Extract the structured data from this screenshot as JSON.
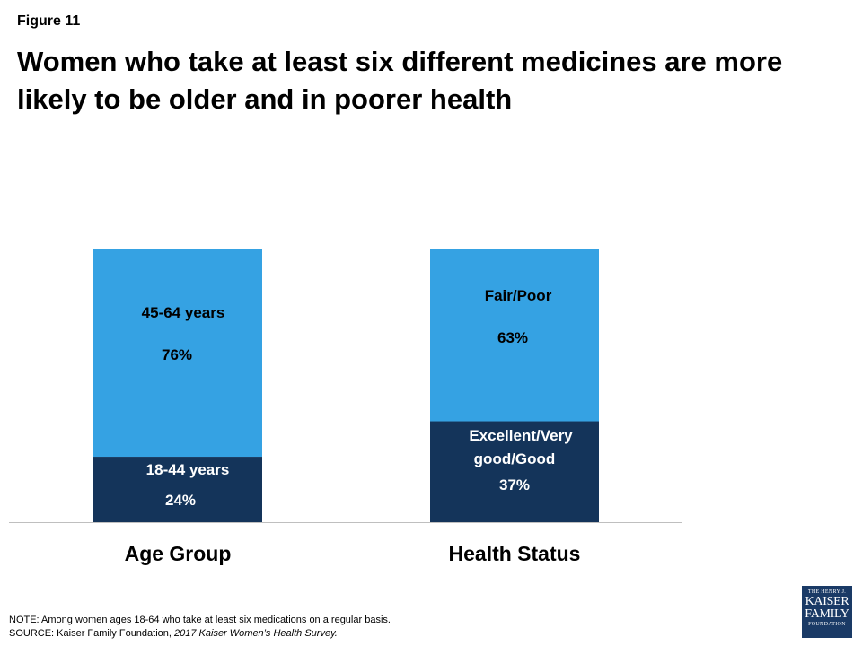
{
  "figure_label": "Figure 11",
  "title": "Women who take at least six different medicines are more likely to  be older and in poorer health",
  "note_line": "NOTE:  Among women ages 18-64 who take at least six medications on a regular basis.",
  "source_prefix": "SOURCE:  Kaiser Family Foundation, ",
  "source_title": "2017 Kaiser Women’s Health Survey.",
  "logo": {
    "line1": "THE HENRY J.",
    "line2": "KAISER",
    "line3": "FAMILY",
    "line4": "FOUNDATION"
  },
  "colors": {
    "light_blue": "#35a2e3",
    "dark_navy": "#14345a",
    "logo_bg": "#1a3a66"
  },
  "chart_data": {
    "type": "bar",
    "stacked": true,
    "percent_scale": true,
    "ylim": [
      0,
      100
    ],
    "categories": [
      "Age Group",
      "Health Status"
    ],
    "bars": [
      {
        "category": "Age Group",
        "segments": [
          {
            "label": "18-44 years",
            "value": 24,
            "value_label": "24%",
            "color": "#14345a"
          },
          {
            "label": "45-64 years",
            "value": 76,
            "value_label": "76%",
            "color": "#35a2e3"
          }
        ]
      },
      {
        "category": "Health Status",
        "segments": [
          {
            "label": "Excellent/Very good/Good",
            "label_lines": [
              "Excellent/Very",
              "good/Good"
            ],
            "value": 37,
            "value_label": "37%",
            "color": "#14345a"
          },
          {
            "label": "Fair/Poor",
            "value": 63,
            "value_label": "63%",
            "color": "#35a2e3"
          }
        ]
      }
    ],
    "title": "",
    "xlabel": "",
    "ylabel": "",
    "grid": false,
    "legend": "none"
  }
}
